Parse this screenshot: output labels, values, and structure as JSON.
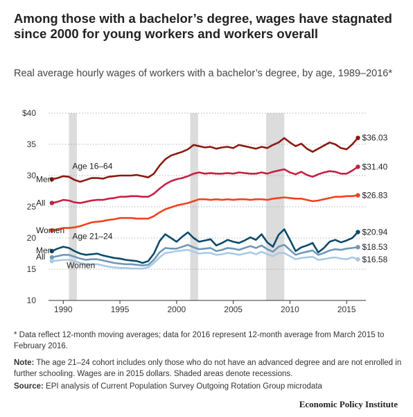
{
  "title": "Among those with a bachelor’s degree, wages have stagnated since 2000 for young workers and workers overall",
  "subtitle": "Real average hourly wages of workers with a bachelor’s degree, by age, 1989–2016*",
  "footnote": "* Data reflect 12-month moving averages; data for 2016 represent 12-month average from March 2015 to February 2016.",
  "note_label": "Note:",
  "note_text": "The age 21–24 cohort includes only those who do not have an advanced degree and are not enrolled in further schooling. Wages are in 2015 dollars. Shaded areas denote recessions.",
  "source_label": "Source:",
  "source_text": "EPI analysis of Current Population Survey Outgoing Rotation Group microdata",
  "brand": "Economic Policy Institute",
  "chart_data": {
    "type": "line",
    "xlim": [
      1988.7,
      2016.7
    ],
    "ylim": [
      10,
      40
    ],
    "y_ticks": [
      10,
      15,
      20,
      25,
      30,
      35,
      40
    ],
    "y_tick_labels": [
      "10",
      "15",
      "20",
      "25",
      "30",
      "35",
      "$40"
    ],
    "x_ticks": [
      1990,
      1995,
      2000,
      2005,
      2010,
      2015
    ],
    "grid": true,
    "recessions": [
      [
        1990.5,
        1991.2
      ],
      [
        2001.2,
        2001.9
      ],
      [
        2007.9,
        2009.5
      ]
    ],
    "group_labels": [
      {
        "text": "Age 16–64",
        "x": 1990.8,
        "y": 31.5
      },
      {
        "text": "Age 21–24",
        "x": 1990.8,
        "y": 20.3
      }
    ],
    "series": [
      {
        "name": "Men",
        "group": "Age 16–64",
        "color": "#8b1a10",
        "end_label": "$36.03",
        "x": [
          1989,
          1989.5,
          1990,
          1990.5,
          1991,
          1991.5,
          1992,
          1992.5,
          1993,
          1993.5,
          1994,
          1994.5,
          1995,
          1995.5,
          1996,
          1996.5,
          1997,
          1997.5,
          1998,
          1998.5,
          1999,
          1999.5,
          2000,
          2000.5,
          2001,
          2001.5,
          2002,
          2002.5,
          2003,
          2003.5,
          2004,
          2004.5,
          2005,
          2005.5,
          2006,
          2006.5,
          2007,
          2007.5,
          2008,
          2008.5,
          2009,
          2009.5,
          2010,
          2010.5,
          2011,
          2011.5,
          2012,
          2012.5,
          2013,
          2013.5,
          2014,
          2014.5,
          2015,
          2015.5,
          2016
        ],
        "y": [
          29.4,
          29.6,
          29.9,
          29.8,
          29.3,
          29.0,
          29.3,
          29.6,
          29.6,
          29.5,
          29.8,
          29.9,
          30.0,
          30.0,
          30.0,
          30.1,
          29.9,
          29.7,
          30.3,
          31.6,
          32.6,
          33.2,
          33.5,
          33.8,
          34.2,
          34.9,
          34.7,
          34.5,
          34.6,
          34.3,
          34.5,
          34.6,
          34.4,
          34.9,
          34.7,
          34.5,
          34.3,
          34.6,
          34.4,
          34.9,
          35.3,
          36.0,
          35.3,
          34.7,
          35.1,
          34.3,
          33.8,
          34.3,
          34.8,
          35.3,
          35.0,
          34.4,
          34.2,
          35.0,
          36.03
        ],
        "label_x": 1987.6,
        "label_y": 29.4
      },
      {
        "name": "All",
        "group": "Age 16–64",
        "color": "#c71f45",
        "end_label": "$31.40",
        "x": [
          1989,
          1989.5,
          1990,
          1990.5,
          1991,
          1991.5,
          1992,
          1992.5,
          1993,
          1993.5,
          1994,
          1994.5,
          1995,
          1995.5,
          1996,
          1996.5,
          1997,
          1997.5,
          1998,
          1998.5,
          1999,
          1999.5,
          2000,
          2000.5,
          2001,
          2001.5,
          2002,
          2002.5,
          2003,
          2003.5,
          2004,
          2004.5,
          2005,
          2005.5,
          2006,
          2006.5,
          2007,
          2007.5,
          2008,
          2008.5,
          2009,
          2009.5,
          2010,
          2010.5,
          2011,
          2011.5,
          2012,
          2012.5,
          2013,
          2013.5,
          2014,
          2014.5,
          2015,
          2015.5,
          2016
        ],
        "y": [
          25.6,
          25.8,
          26.1,
          26.0,
          25.7,
          25.6,
          25.8,
          26.0,
          26.1,
          26.1,
          26.3,
          26.4,
          26.6,
          26.6,
          26.7,
          26.7,
          26.6,
          26.6,
          27.1,
          27.9,
          28.6,
          29.1,
          29.4,
          29.6,
          29.9,
          30.3,
          30.5,
          30.3,
          30.4,
          30.3,
          30.3,
          30.4,
          30.3,
          30.5,
          30.4,
          30.3,
          30.3,
          30.5,
          30.3,
          30.6,
          30.8,
          31.0,
          30.5,
          30.2,
          30.6,
          30.1,
          29.8,
          30.2,
          30.5,
          30.7,
          30.6,
          30.3,
          30.3,
          30.8,
          31.4
        ],
        "label_x": 1987.6,
        "label_y": 25.6
      },
      {
        "name": "Women",
        "group": "Age 16–64",
        "color": "#f0421d",
        "end_label": "$26.83",
        "x": [
          1989,
          1989.5,
          1990,
          1990.5,
          1991,
          1991.5,
          1992,
          1992.5,
          1993,
          1993.5,
          1994,
          1994.5,
          1995,
          1995.5,
          1996,
          1996.5,
          1997,
          1997.5,
          1998,
          1998.5,
          1999,
          1999.5,
          2000,
          2000.5,
          2001,
          2001.5,
          2002,
          2002.5,
          2003,
          2003.5,
          2004,
          2004.5,
          2005,
          2005.5,
          2006,
          2006.5,
          2007,
          2007.5,
          2008,
          2008.5,
          2009,
          2009.5,
          2010,
          2010.5,
          2011,
          2011.5,
          2012,
          2012.5,
          2013,
          2013.5,
          2014,
          2014.5,
          2015,
          2015.5,
          2016
        ],
        "y": [
          21.2,
          21.4,
          21.6,
          21.6,
          21.7,
          21.9,
          22.2,
          22.5,
          22.6,
          22.7,
          22.9,
          23.0,
          23.2,
          23.2,
          23.2,
          23.1,
          23.1,
          23.1,
          23.5,
          24.1,
          24.6,
          24.9,
          25.2,
          25.4,
          25.6,
          25.9,
          26.2,
          26.2,
          26.1,
          26.2,
          26.1,
          26.2,
          26.1,
          26.2,
          26.2,
          26.1,
          26.2,
          26.2,
          26.1,
          26.3,
          26.4,
          26.5,
          26.4,
          26.3,
          26.3,
          26.1,
          25.9,
          26.0,
          26.2,
          26.4,
          26.6,
          26.6,
          26.7,
          26.7,
          26.83
        ],
        "label_x": 1987.6,
        "label_y": 21.2
      },
      {
        "name": "Men",
        "group": "Age 21–24",
        "color": "#0b4a6a",
        "end_label": "$20.94",
        "x": [
          1989,
          1989.5,
          1990,
          1990.5,
          1991,
          1991.5,
          1992,
          1992.5,
          1993,
          1993.5,
          1994,
          1994.5,
          1995,
          1995.5,
          1996,
          1996.5,
          1997,
          1997.5,
          1998,
          1998.5,
          1999,
          1999.5,
          2000,
          2000.5,
          2001,
          2001.5,
          2002,
          2002.5,
          2003,
          2003.5,
          2004,
          2004.5,
          2005,
          2005.5,
          2006,
          2006.5,
          2007,
          2007.5,
          2008,
          2008.5,
          2009,
          2009.5,
          2010,
          2010.5,
          2011,
          2011.5,
          2012,
          2012.5,
          2013,
          2013.5,
          2014,
          2014.5,
          2015,
          2015.5,
          2016
        ],
        "y": [
          17.9,
          18.3,
          18.6,
          18.4,
          17.9,
          17.5,
          17.3,
          17.4,
          17.5,
          17.2,
          17.0,
          16.8,
          16.7,
          16.5,
          16.4,
          16.3,
          16.0,
          16.3,
          17.5,
          19.5,
          20.6,
          20.0,
          19.4,
          20.2,
          20.9,
          20.0,
          19.4,
          19.6,
          19.8,
          18.8,
          19.2,
          19.7,
          19.4,
          19.2,
          19.6,
          20.1,
          19.7,
          20.6,
          19.3,
          18.6,
          20.5,
          21.4,
          19.7,
          17.9,
          18.5,
          18.8,
          19.2,
          17.7,
          18.4,
          19.4,
          19.7,
          19.3,
          19.6,
          20.0,
          20.94
        ],
        "label_x": 1987.6,
        "label_y": 18.0
      },
      {
        "name": "All",
        "group": "Age 21–24",
        "color": "#6f98b5",
        "end_label": "$18.53",
        "x": [
          1989,
          1989.5,
          1990,
          1990.5,
          1991,
          1991.5,
          1992,
          1992.5,
          1993,
          1993.5,
          1994,
          1994.5,
          1995,
          1995.5,
          1996,
          1996.5,
          1997,
          1997.5,
          1998,
          1998.5,
          1999,
          1999.5,
          2000,
          2000.5,
          2001,
          2001.5,
          2002,
          2002.5,
          2003,
          2003.5,
          2004,
          2004.5,
          2005,
          2005.5,
          2006,
          2006.5,
          2007,
          2007.5,
          2008,
          2008.5,
          2009,
          2009.5,
          2010,
          2010.5,
          2011,
          2011.5,
          2012,
          2012.5,
          2013,
          2013.5,
          2014,
          2014.5,
          2015,
          2015.5,
          2016
        ],
        "y": [
          16.9,
          17.1,
          17.3,
          17.3,
          17.0,
          16.7,
          16.5,
          16.6,
          16.6,
          16.4,
          16.2,
          16.0,
          15.9,
          15.8,
          15.8,
          15.7,
          15.6,
          15.7,
          16.5,
          17.7,
          18.4,
          18.3,
          18.3,
          18.6,
          18.9,
          18.5,
          18.2,
          18.3,
          18.4,
          17.9,
          18.1,
          18.4,
          18.3,
          18.1,
          18.4,
          18.7,
          18.4,
          18.8,
          18.2,
          17.8,
          18.6,
          18.9,
          18.1,
          17.3,
          17.6,
          17.8,
          18.0,
          17.3,
          17.6,
          18.0,
          18.2,
          18.1,
          18.3,
          18.4,
          18.53
        ],
        "label_x": 1987.6,
        "label_y": 17.0
      },
      {
        "name": "Women",
        "group": "Age 21–24",
        "color": "#a9c9e6",
        "end_label": "$16.58",
        "x": [
          1989,
          1989.5,
          1990,
          1990.5,
          1991,
          1991.5,
          1992,
          1992.5,
          1993,
          1993.5,
          1994,
          1994.5,
          1995,
          1995.5,
          1996,
          1996.5,
          1997,
          1997.5,
          1998,
          1998.5,
          1999,
          1999.5,
          2000,
          2000.5,
          2001,
          2001.5,
          2002,
          2002.5,
          2003,
          2003.5,
          2004,
          2004.5,
          2005,
          2005.5,
          2006,
          2006.5,
          2007,
          2007.5,
          2008,
          2008.5,
          2009,
          2009.5,
          2010,
          2010.5,
          2011,
          2011.5,
          2012,
          2012.5,
          2013,
          2013.5,
          2014,
          2014.5,
          2015,
          2015.5,
          2016
        ],
        "y": [
          16.3,
          16.4,
          16.5,
          16.5,
          16.3,
          16.0,
          15.8,
          15.8,
          15.8,
          15.6,
          15.4,
          15.3,
          15.2,
          15.2,
          15.1,
          15.1,
          15.1,
          15.3,
          16.0,
          16.9,
          17.6,
          17.7,
          17.9,
          18.0,
          18.1,
          17.8,
          17.5,
          17.6,
          17.6,
          17.3,
          17.4,
          17.6,
          17.5,
          17.3,
          17.5,
          17.7,
          17.4,
          17.8,
          17.4,
          17.1,
          17.6,
          17.6,
          17.1,
          16.6,
          16.8,
          16.9,
          17.0,
          16.5,
          16.6,
          16.8,
          16.9,
          16.7,
          16.6,
          16.9,
          16.58
        ],
        "label_x": 1990.3,
        "label_y": 15.6
      }
    ]
  }
}
